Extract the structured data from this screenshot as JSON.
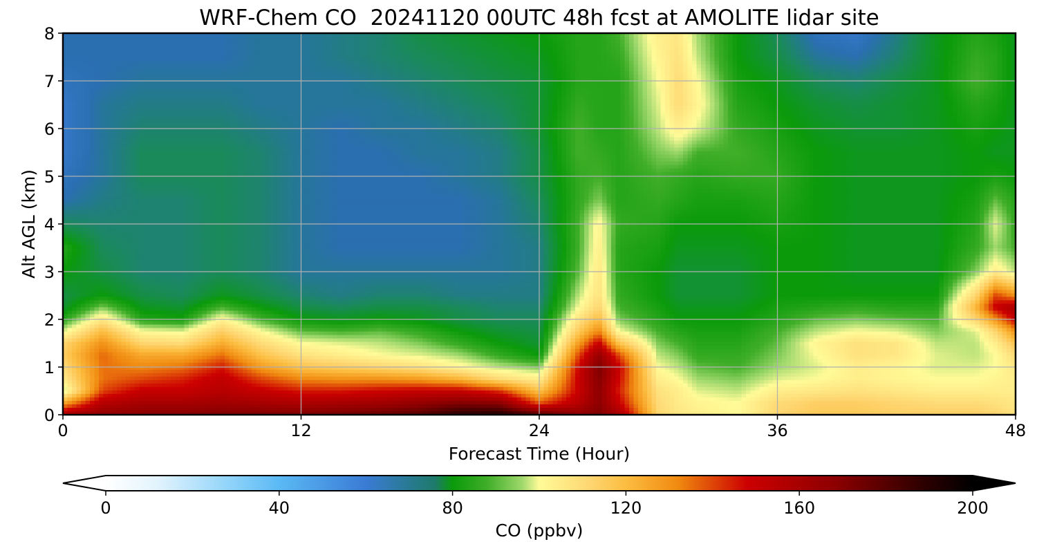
{
  "chart_data": {
    "type": "heatmap",
    "title": "WRF-Chem CO  20241120 00UTC 48h fcst at AMOLITE lidar site",
    "xlabel": "Forecast Time (Hour)",
    "ylabel": "Alt AGL (km)",
    "xlim": [
      0,
      48
    ],
    "ylim": [
      0,
      8
    ],
    "x_ticks": [
      "0",
      "12",
      "24",
      "36",
      "48"
    ],
    "y_ticks": [
      "0",
      "1",
      "2",
      "3",
      "4",
      "5",
      "6",
      "7",
      "8"
    ],
    "grid": true,
    "colorbar": {
      "label": "CO  (ppbv)",
      "range": [
        0,
        200
      ],
      "ticks": [
        "0",
        "40",
        "80",
        "120",
        "160",
        "200"
      ],
      "extend": "both",
      "placement": "bottom"
    },
    "x": [
      0,
      2,
      4,
      6,
      8,
      10,
      12,
      14,
      16,
      18,
      20,
      22,
      24,
      26,
      27,
      28,
      30,
      31,
      32,
      34,
      36,
      38,
      40,
      42,
      44,
      46,
      47,
      48
    ],
    "y": [
      0,
      0.25,
      0.5,
      0.75,
      1,
      1.25,
      1.5,
      1.75,
      2,
      2.25,
      2.5,
      3,
      3.5,
      4,
      4.5,
      5,
      5.5,
      6,
      6.5,
      7,
      7.5,
      8
    ],
    "values": [
      [
        160,
        168,
        170,
        170,
        172,
        172,
        172,
        174,
        176,
        180,
        190,
        192,
        180,
        168,
        172,
        160,
        112,
        106,
        104,
        100,
        112,
        116,
        116,
        114,
        114,
        114,
        112,
        108
      ],
      [
        125,
        155,
        160,
        160,
        162,
        160,
        158,
        160,
        162,
        166,
        170,
        168,
        138,
        155,
        168,
        150,
        110,
        105,
        102,
        100,
        110,
        114,
        114,
        112,
        110,
        110,
        108,
        106
      ],
      [
        95,
        140,
        150,
        150,
        155,
        150,
        145,
        145,
        148,
        150,
        150,
        142,
        118,
        150,
        168,
        145,
        108,
        104,
        98,
        96,
        104,
        106,
        108,
        106,
        104,
        104,
        104,
        104
      ],
      [
        105,
        135,
        140,
        144,
        152,
        140,
        132,
        130,
        130,
        128,
        122,
        110,
        104,
        150,
        170,
        148,
        104,
        100,
        94,
        92,
        98,
        100,
        104,
        102,
        100,
        100,
        102,
        104
      ],
      [
        110,
        135,
        132,
        135,
        145,
        128,
        118,
        115,
        112,
        108,
        102,
        96,
        92,
        148,
        172,
        150,
        100,
        96,
        90,
        88,
        94,
        98,
        104,
        102,
        98,
        98,
        100,
        106
      ],
      [
        115,
        136,
        125,
        125,
        135,
        118,
        108,
        104,
        100,
        98,
        94,
        86,
        80,
        140,
        165,
        140,
        96,
        92,
        86,
        86,
        92,
        100,
        108,
        106,
        98,
        96,
        100,
        110
      ],
      [
        112,
        130,
        112,
        110,
        124,
        110,
        100,
        98,
        96,
        92,
        86,
        80,
        76,
        128,
        150,
        118,
        92,
        88,
        84,
        84,
        90,
        102,
        108,
        106,
        96,
        96,
        104,
        118
      ],
      [
        98,
        120,
        100,
        98,
        114,
        100,
        90,
        88,
        90,
        86,
        80,
        76,
        74,
        116,
        132,
        100,
        88,
        84,
        82,
        82,
        88,
        96,
        100,
        98,
        92,
        98,
        112,
        130
      ],
      [
        84,
        106,
        84,
        82,
        102,
        88,
        80,
        78,
        80,
        78,
        74,
        72,
        72,
        108,
        120,
        92,
        84,
        80,
        80,
        80,
        84,
        90,
        92,
        90,
        88,
        112,
        130,
        150
      ],
      [
        76,
        92,
        78,
        76,
        88,
        80,
        74,
        72,
        74,
        74,
        72,
        70,
        70,
        100,
        112,
        88,
        82,
        78,
        78,
        78,
        82,
        84,
        86,
        84,
        84,
        122,
        150,
        160
      ],
      [
        74,
        80,
        74,
        72,
        78,
        74,
        70,
        68,
        70,
        70,
        68,
        68,
        68,
        96,
        108,
        86,
        80,
        76,
        76,
        76,
        80,
        80,
        80,
        80,
        80,
        112,
        140,
        130
      ],
      [
        80,
        74,
        70,
        70,
        72,
        70,
        66,
        66,
        66,
        66,
        66,
        66,
        68,
        90,
        106,
        84,
        80,
        76,
        76,
        76,
        80,
        80,
        78,
        78,
        78,
        92,
        104,
        96
      ],
      [
        84,
        72,
        70,
        70,
        72,
        70,
        66,
        64,
        64,
        64,
        64,
        66,
        68,
        88,
        104,
        84,
        82,
        78,
        78,
        78,
        80,
        80,
        78,
        78,
        78,
        86,
        94,
        88
      ],
      [
        72,
        70,
        70,
        70,
        72,
        70,
        66,
        64,
        64,
        64,
        64,
        66,
        70,
        88,
        102,
        86,
        84,
        80,
        80,
        80,
        82,
        80,
        78,
        78,
        78,
        84,
        98,
        86
      ],
      [
        64,
        68,
        70,
        70,
        72,
        70,
        66,
        64,
        64,
        64,
        64,
        66,
        72,
        86,
        92,
        84,
        86,
        84,
        82,
        82,
        84,
        80,
        78,
        78,
        78,
        82,
        90,
        84
      ],
      [
        62,
        66,
        72,
        72,
        72,
        70,
        66,
        64,
        64,
        64,
        66,
        68,
        74,
        86,
        88,
        84,
        88,
        86,
        84,
        86,
        86,
        80,
        78,
        78,
        78,
        80,
        82,
        80
      ],
      [
        60,
        66,
        72,
        72,
        72,
        70,
        66,
        64,
        64,
        66,
        66,
        68,
        74,
        88,
        86,
        84,
        92,
        94,
        88,
        88,
        84,
        80,
        78,
        78,
        78,
        80,
        78,
        78
      ],
      [
        60,
        66,
        70,
        70,
        70,
        68,
        66,
        64,
        66,
        66,
        68,
        70,
        76,
        88,
        84,
        84,
        96,
        104,
        98,
        86,
        82,
        78,
        76,
        76,
        78,
        82,
        80,
        78
      ],
      [
        60,
        66,
        68,
        68,
        68,
        66,
        66,
        66,
        66,
        68,
        70,
        72,
        76,
        86,
        84,
        84,
        98,
        110,
        102,
        84,
        80,
        76,
        74,
        76,
        78,
        84,
        82,
        78
      ],
      [
        62,
        64,
        66,
        66,
        66,
        66,
        66,
        66,
        68,
        70,
        72,
        74,
        76,
        84,
        84,
        84,
        100,
        110,
        100,
        82,
        78,
        72,
        70,
        74,
        78,
        88,
        84,
        78
      ],
      [
        64,
        64,
        64,
        64,
        64,
        66,
        66,
        68,
        70,
        72,
        74,
        76,
        78,
        84,
        84,
        86,
        102,
        108,
        96,
        80,
        74,
        66,
        64,
        70,
        78,
        86,
        84,
        78
      ],
      [
        64,
        64,
        64,
        64,
        64,
        66,
        66,
        68,
        70,
        74,
        76,
        78,
        80,
        84,
        84,
        88,
        104,
        106,
        94,
        80,
        72,
        62,
        60,
        68,
        78,
        84,
        82,
        78
      ]
    ]
  }
}
